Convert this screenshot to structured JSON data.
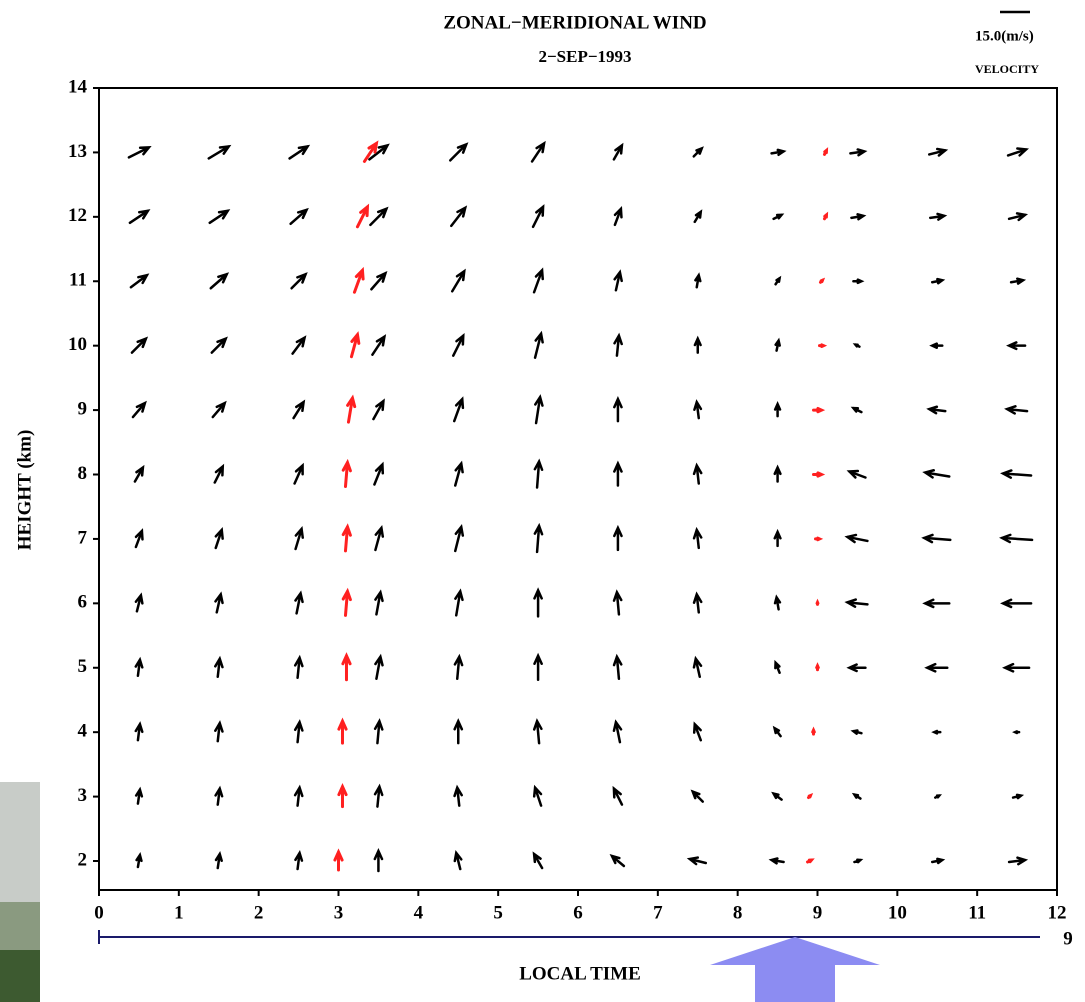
{
  "chart_data": {
    "type": "quiver",
    "title": "ZONAL−MERIDIONAL WIND",
    "subtitle": "2−SEP−1993",
    "x_label": "LOCAL TIME",
    "y_label": "HEIGHT (km)",
    "ref_speed": {
      "value": 15,
      "label": "15.0(m/s)"
    },
    "ref_label": "VELOCITY",
    "secondary_end_label": "9",
    "color": "#000000",
    "xlim": [
      0,
      12
    ],
    "ylim": [
      1.55,
      14
    ],
    "xticks": [
      0,
      1,
      2,
      3,
      4,
      5,
      6,
      7,
      8,
      9,
      10,
      11,
      12
    ],
    "yticks": [
      2,
      3,
      4,
      5,
      6,
      7,
      8,
      9,
      10,
      11,
      12,
      13,
      14
    ],
    "x": [
      0.5,
      1.5,
      2.5,
      3.5,
      4.5,
      5.5,
      6.5,
      7.5,
      8.5,
      9.5,
      10.5,
      11.5
    ],
    "y": [
      2,
      3,
      4,
      5,
      6,
      7,
      8,
      9,
      10,
      11,
      12,
      13
    ],
    "u": [
      [
        1,
        1,
        1,
        0,
        -2,
        -4,
        -6,
        -8,
        -6,
        3,
        5,
        8
      ],
      [
        1,
        1,
        1,
        1,
        -1,
        -3,
        -4,
        -5,
        -4,
        -3,
        2,
        4
      ],
      [
        1,
        1,
        1,
        1,
        0,
        -1,
        -2,
        -3,
        -3,
        -4,
        -3,
        -2
      ],
      [
        1,
        1,
        1,
        2,
        1,
        0,
        -1,
        -2,
        -2,
        -8,
        -10,
        -12
      ],
      [
        2,
        2,
        2,
        2,
        2,
        0,
        -1,
        -1,
        -1,
        -10,
        -12,
        -14
      ],
      [
        3,
        3,
        3,
        3,
        3,
        1,
        0,
        -1,
        0,
        -10,
        -13,
        -15
      ],
      [
        4,
        4,
        4,
        4,
        3,
        1,
        0,
        -1,
        0,
        -8,
        -12,
        -14
      ],
      [
        6,
        6,
        5,
        5,
        4,
        2,
        0,
        -1,
        0,
        -4,
        -8,
        -10
      ],
      [
        7,
        7,
        6,
        6,
        5,
        3,
        1,
        0,
        1,
        -2,
        -5,
        -8
      ],
      [
        8,
        8,
        7,
        7,
        6,
        4,
        2,
        1,
        2,
        4,
        5,
        6
      ],
      [
        9,
        9,
        8,
        8,
        7,
        5,
        3,
        3,
        4,
        6,
        7,
        8
      ],
      [
        10,
        10,
        9,
        9,
        8,
        6,
        4,
        4,
        6,
        7,
        8,
        9
      ]
    ],
    "v": [
      [
        6,
        7,
        8,
        10,
        8,
        7,
        5,
        2,
        1,
        1,
        1,
        1
      ],
      [
        7,
        8,
        9,
        10,
        9,
        9,
        8,
        5,
        3,
        2,
        1,
        1
      ],
      [
        8,
        9,
        10,
        11,
        11,
        11,
        10,
        8,
        4,
        1,
        0,
        0
      ],
      [
        8,
        9,
        10,
        11,
        11,
        12,
        11,
        9,
        5,
        0,
        0,
        0
      ],
      [
        8,
        9,
        10,
        11,
        12,
        13,
        11,
        9,
        6,
        1,
        0,
        0
      ],
      [
        8,
        9,
        10,
        11,
        12,
        13,
        11,
        9,
        7,
        2,
        1,
        1
      ],
      [
        7,
        8,
        9,
        10,
        11,
        13,
        11,
        9,
        7,
        3,
        2,
        1
      ],
      [
        7,
        7,
        8,
        9,
        11,
        13,
        11,
        8,
        6,
        2,
        1,
        1
      ],
      [
        7,
        7,
        8,
        9,
        10,
        12,
        10,
        7,
        5,
        1,
        0,
        0
      ],
      [
        6,
        7,
        7,
        8,
        10,
        11,
        9,
        6,
        3,
        0,
        1,
        1
      ],
      [
        6,
        6,
        7,
        8,
        9,
        10,
        8,
        5,
        2,
        1,
        1,
        2
      ],
      [
        5,
        6,
        6,
        7,
        8,
        9,
        7,
        4,
        1,
        1,
        2,
        3
      ]
    ],
    "traces": [
      {
        "color": "#ff2020",
        "x": [
          3.0,
          3.05,
          3.05,
          3.1,
          3.1,
          3.1,
          3.1,
          3.15,
          3.2,
          3.25,
          3.3,
          3.4
        ],
        "y": [
          2,
          3,
          4,
          5,
          6,
          7,
          8,
          9,
          10,
          11,
          12,
          13
        ],
        "u": [
          0,
          0,
          0,
          0,
          1,
          1,
          1,
          2,
          3,
          4,
          5,
          6
        ],
        "v": [
          9,
          10,
          11,
          12,
          12,
          12,
          12,
          12,
          11,
          11,
          10,
          9
        ]
      },
      {
        "color": "#ff2020",
        "x": [
          8.9,
          8.9,
          8.95,
          9.0,
          9.0,
          9.0,
          9.0,
          9.0,
          9.05,
          9.05,
          9.1,
          9.1
        ],
        "y": [
          2,
          3,
          4,
          5,
          6,
          7,
          8,
          9,
          10,
          11,
          12,
          13
        ],
        "u": [
          2,
          1,
          0,
          0,
          0,
          2,
          4,
          4,
          2,
          1,
          1,
          1
        ],
        "v": [
          1,
          1,
          2,
          2,
          1,
          0,
          0,
          0,
          0,
          1,
          2,
          2
        ]
      }
    ]
  }
}
